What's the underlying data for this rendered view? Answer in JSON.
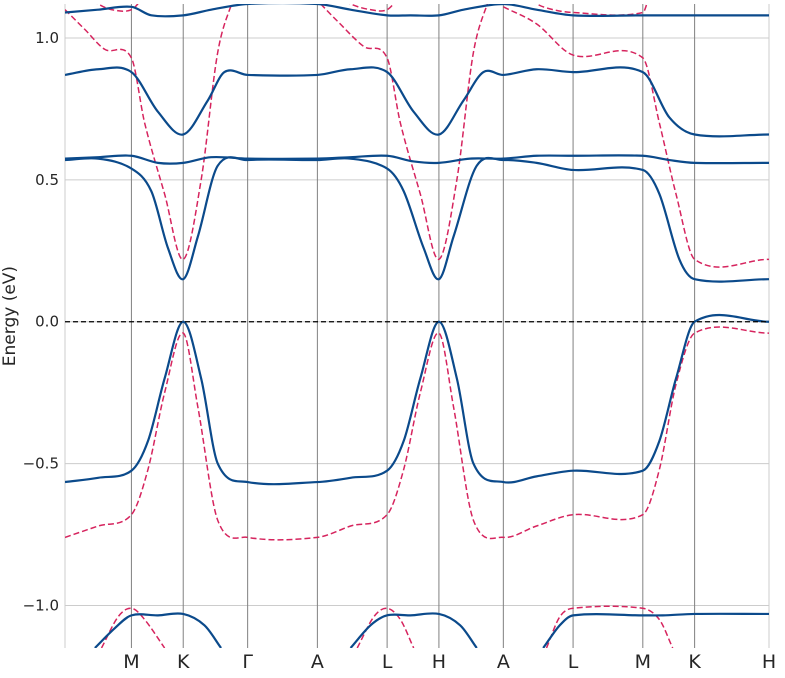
{
  "chart_data": {
    "type": "line",
    "title": "",
    "xlabel": "",
    "ylabel": "Energy (eV)",
    "ylim": [
      -1.15,
      1.12
    ],
    "yticks": [
      -1.0,
      -0.5,
      0.0,
      0.5,
      1.0
    ],
    "ytick_labels": [
      "−1.0",
      "−0.5",
      "0.0",
      "0.5",
      "1.0"
    ],
    "kpoint_labels": [
      "M",
      "K",
      "Γ",
      "A",
      "L",
      "H",
      "A",
      "L",
      "M",
      "K",
      "H"
    ],
    "kpoint_positions": [
      1.0,
      1.78,
      2.75,
      3.8,
      4.85,
      5.63,
      6.6,
      7.65,
      8.7,
      9.48,
      10.6
    ],
    "x_range": [
      0,
      10.6
    ],
    "fermi_level": 0.0,
    "grid": true,
    "legend": "none",
    "colors": {
      "solid": "#0b4a8b",
      "dashed": "#d6245e",
      "fermi": "#000000",
      "vline": "#808080",
      "grid": "#cccccc"
    },
    "series": [
      {
        "style": "solid",
        "x": [
          0,
          0.5,
          1.0,
          1.3,
          1.78,
          2.2,
          2.75,
          3.8,
          4.3,
          4.85,
          5.2,
          5.63,
          6.0,
          6.6,
          7.1,
          7.65,
          8.7,
          9.1,
          9.48,
          10.6
        ],
        "y": [
          1.09,
          1.1,
          1.11,
          1.08,
          1.08,
          1.1,
          1.12,
          1.12,
          1.1,
          1.08,
          1.08,
          1.08,
          1.1,
          1.12,
          1.1,
          1.08,
          1.08,
          1.08,
          1.08,
          1.08
        ]
      },
      {
        "style": "solid",
        "x": [
          0,
          0.5,
          1.0,
          1.4,
          1.78,
          2.15,
          2.4,
          2.75,
          3.8,
          4.3,
          4.85,
          5.25,
          5.63,
          6.0,
          6.3,
          6.6,
          7.1,
          7.65,
          8.7,
          9.1,
          9.48,
          10.6
        ],
        "y": [
          0.87,
          0.89,
          0.88,
          0.74,
          0.66,
          0.78,
          0.88,
          0.87,
          0.87,
          0.89,
          0.88,
          0.74,
          0.66,
          0.78,
          0.88,
          0.87,
          0.89,
          0.88,
          0.88,
          0.72,
          0.66,
          0.66
        ]
      },
      {
        "style": "solid",
        "x": [
          0,
          0.5,
          1.0,
          1.4,
          1.78,
          2.2,
          2.75,
          3.8,
          4.3,
          4.85,
          5.25,
          5.63,
          6.1,
          6.6,
          7.1,
          7.65,
          8.7,
          9.1,
          9.48,
          10.6
        ],
        "y": [
          0.575,
          0.58,
          0.585,
          0.56,
          0.56,
          0.58,
          0.575,
          0.575,
          0.58,
          0.585,
          0.565,
          0.56,
          0.575,
          0.575,
          0.585,
          0.585,
          0.585,
          0.57,
          0.56,
          0.56
        ]
      },
      {
        "style": "solid",
        "x": [
          0,
          0.5,
          1.0,
          1.3,
          1.55,
          1.78,
          2.0,
          2.3,
          2.75,
          3.8,
          4.3,
          4.85,
          5.1,
          5.4,
          5.63,
          5.85,
          6.2,
          6.6,
          7.1,
          7.65,
          8.7,
          8.95,
          9.25,
          9.48,
          10.6
        ],
        "y": [
          0.57,
          0.575,
          0.54,
          0.46,
          0.26,
          0.15,
          0.3,
          0.55,
          0.57,
          0.57,
          0.575,
          0.54,
          0.46,
          0.26,
          0.15,
          0.3,
          0.55,
          0.57,
          0.56,
          0.535,
          0.535,
          0.45,
          0.22,
          0.15,
          0.15
        ]
      },
      {
        "style": "solid",
        "x": [
          0,
          0.5,
          1.0,
          1.25,
          1.5,
          1.78,
          2.05,
          2.3,
          2.75,
          3.8,
          4.3,
          4.85,
          5.1,
          5.35,
          5.63,
          5.9,
          6.15,
          6.6,
          7.1,
          7.65,
          8.7,
          8.95,
          9.2,
          9.48,
          10.6
        ],
        "y": [
          -0.565,
          -0.55,
          -0.525,
          -0.42,
          -0.2,
          0.0,
          -0.2,
          -0.5,
          -0.565,
          -0.565,
          -0.55,
          -0.525,
          -0.42,
          -0.2,
          0.0,
          -0.2,
          -0.5,
          -0.565,
          -0.545,
          -0.525,
          -0.525,
          -0.42,
          -0.2,
          0.0,
          0.0
        ]
      },
      {
        "style": "solid",
        "x": [
          0.45,
          0.75,
          1.0,
          1.4,
          1.78,
          2.1,
          2.35
        ],
        "y": [
          -1.15,
          -1.08,
          -1.035,
          -1.035,
          -1.03,
          -1.07,
          -1.15
        ]
      },
      {
        "style": "solid",
        "x": [
          4.3,
          4.6,
          4.85,
          5.2,
          5.63,
          5.95,
          6.2
        ],
        "y": [
          -1.15,
          -1.07,
          -1.035,
          -1.035,
          -1.03,
          -1.07,
          -1.15
        ]
      },
      {
        "style": "solid",
        "x": [
          7.2,
          7.45,
          7.65,
          8.7,
          9.0,
          9.48,
          10.6
        ],
        "y": [
          -1.15,
          -1.07,
          -1.035,
          -1.035,
          -1.035,
          -1.03,
          -1.03
        ]
      },
      {
        "style": "dashed",
        "x": [
          0,
          0.3,
          0.6,
          1.0,
          1.2,
          1.5,
          1.78,
          2.05,
          2.3,
          2.55
        ],
        "y": [
          1.1,
          1.03,
          0.96,
          0.93,
          0.7,
          0.45,
          0.22,
          0.5,
          0.95,
          1.15
        ]
      },
      {
        "style": "dashed",
        "x": [
          3.85,
          4.1,
          4.5,
          4.85,
          5.05,
          5.35,
          5.63,
          5.9,
          6.15,
          6.4
        ],
        "y": [
          1.12,
          1.06,
          0.97,
          0.93,
          0.7,
          0.45,
          0.22,
          0.5,
          0.95,
          1.15
        ]
      },
      {
        "style": "dashed",
        "x": [
          6.6,
          7.1,
          7.65,
          8.7,
          8.95,
          9.2,
          9.48,
          10.6
        ],
        "y": [
          1.11,
          1.05,
          0.94,
          0.93,
          0.7,
          0.45,
          0.22,
          0.22
        ]
      },
      {
        "style": "dashed",
        "x": [
          0.3,
          0.5,
          0.7,
          1.0,
          1.2
        ],
        "y": [
          1.15,
          1.12,
          1.1,
          1.1,
          1.15
        ]
      },
      {
        "style": "dashed",
        "x": [
          4.1,
          4.3,
          4.6,
          4.85,
          5.05
        ],
        "y": [
          1.15,
          1.12,
          1.1,
          1.1,
          1.15
        ]
      },
      {
        "style": "dashed",
        "x": [
          6.9,
          7.2,
          7.65,
          8.7,
          8.8
        ],
        "y": [
          1.15,
          1.11,
          1.09,
          1.09,
          1.15
        ]
      },
      {
        "style": "dashed",
        "x": [
          0,
          0.5,
          1.0,
          1.25,
          1.5,
          1.78,
          2.0,
          2.3,
          2.75,
          3.8,
          4.3,
          4.85,
          5.1,
          5.35,
          5.63,
          5.85,
          6.15,
          6.6,
          7.1,
          7.65,
          8.7,
          8.95,
          9.2,
          9.48,
          10.6
        ],
        "y": [
          -0.76,
          -0.72,
          -0.68,
          -0.52,
          -0.25,
          -0.04,
          -0.3,
          -0.7,
          -0.76,
          -0.76,
          -0.72,
          -0.68,
          -0.52,
          -0.25,
          -0.04,
          -0.3,
          -0.7,
          -0.76,
          -0.72,
          -0.68,
          -0.68,
          -0.52,
          -0.22,
          -0.04,
          -0.04
        ]
      },
      {
        "style": "dashed",
        "x": [
          0.55,
          0.8,
          1.0,
          1.2,
          1.5
        ],
        "y": [
          -1.15,
          -1.04,
          -1.01,
          -1.05,
          -1.15
        ]
      },
      {
        "style": "dashed",
        "x": [
          4.4,
          4.65,
          4.85,
          5.05,
          5.25
        ],
        "y": [
          -1.15,
          -1.04,
          -1.01,
          -1.05,
          -1.15
        ]
      },
      {
        "style": "dashed",
        "x": [
          7.25,
          7.45,
          7.65,
          8.7,
          8.95,
          9.15
        ],
        "y": [
          -1.15,
          -1.04,
          -1.01,
          -1.01,
          -1.05,
          -1.15
        ]
      }
    ]
  }
}
